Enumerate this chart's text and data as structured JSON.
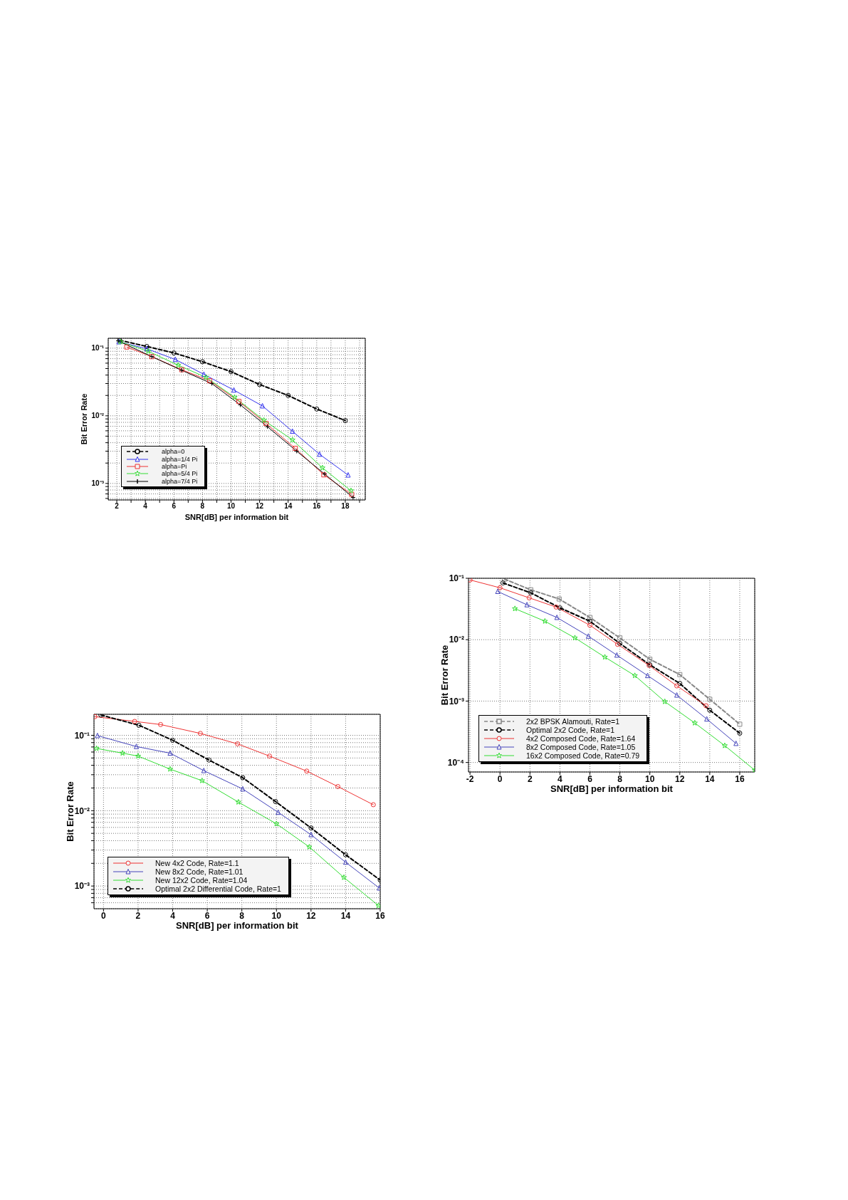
{
  "chart_data": [
    {
      "type": "line",
      "xlabel": "SNR[dB] per information bit",
      "ylabel": "Bit Error Rate",
      "log": "y",
      "grid": true,
      "legend": "bottom left",
      "xlim": [
        1.4,
        19.4
      ],
      "xticks": [
        2,
        {
          "value": 3,
          "label": null
        },
        4,
        {
          "value": 5,
          "label": null
        },
        6,
        {
          "value": 7,
          "label": null
        },
        8,
        {
          "value": 9,
          "label": null
        },
        10,
        {
          "value": 11,
          "label": null
        },
        12,
        {
          "value": 13,
          "label": null
        },
        14,
        {
          "value": 15,
          "label": null
        },
        16,
        {
          "value": 17,
          "label": null
        },
        18,
        {
          "value": 19,
          "label": null
        }
      ],
      "ylim": [
        0.00057,
        0.14
      ],
      "yticks": [
        {
          "value": 0.0006,
          "label": null
        },
        {
          "value": 0.0007,
          "label": null
        },
        {
          "value": 0.0008,
          "label": null
        },
        {
          "value": 0.0009,
          "label": null
        },
        {
          "value": 0.001,
          "label": "10⁻³"
        },
        {
          "value": 0.002,
          "label": null
        },
        {
          "value": 0.003,
          "label": null
        },
        {
          "value": 0.004,
          "label": null
        },
        {
          "value": 0.005,
          "label": null
        },
        {
          "value": 0.006,
          "label": null
        },
        {
          "value": 0.007,
          "label": null
        },
        {
          "value": 0.008,
          "label": null
        },
        {
          "value": 0.009,
          "label": null
        },
        {
          "value": 0.01,
          "label": "10⁻²"
        },
        {
          "value": 0.02,
          "label": null
        },
        {
          "value": 0.03,
          "label": null
        },
        {
          "value": 0.04,
          "label": null
        },
        {
          "value": 0.05,
          "label": null
        },
        {
          "value": 0.06,
          "label": null
        },
        {
          "value": 0.07,
          "label": null
        },
        {
          "value": 0.08,
          "label": null
        },
        {
          "value": 0.09,
          "label": null
        },
        {
          "value": 0.1,
          "label": "10⁻¹"
        }
      ],
      "series": [
        {
          "name": "alpha=0",
          "color": "#000000",
          "line_style": "dashed",
          "marker": "circle",
          "x": [
            2.2,
            4.1,
            6,
            8,
            10,
            12,
            14,
            16,
            18
          ],
          "values": [
            0.131,
            0.106,
            0.085,
            0.063,
            0.045,
            0.029,
            0.02,
            0.0126,
            0.0085
          ]
        },
        {
          "name": "alpha=1/4 Pi",
          "color": "#3333ee",
          "line_style": "solid",
          "marker": "triangle",
          "x": [
            2.15,
            4.1,
            6.1,
            8.1,
            10.2,
            12.2,
            14.3,
            16.2,
            18.2
          ],
          "values": [
            0.124,
            0.098,
            0.068,
            0.041,
            0.024,
            0.014,
            0.0059,
            0.0027,
            0.00133
          ]
        },
        {
          "name": "alpha=Pi",
          "color": "#ee3333",
          "line_style": "solid",
          "marker": "square",
          "x": [
            2.7,
            4.45,
            6.55,
            8.5,
            10.55,
            12.45,
            14.5,
            16.5,
            18.45
          ],
          "values": [
            0.104,
            0.075,
            0.048,
            0.033,
            0.0163,
            0.0077,
            0.0033,
            0.00134,
            0.00069
          ]
        },
        {
          "name": "alpha=5/4 Pi",
          "color": "#33dd33",
          "line_style": "solid",
          "marker": "star",
          "x": [
            2.25,
            4.2,
            6.3,
            8.25,
            10.25,
            12.3,
            14.3,
            16.4,
            18.4
          ],
          "values": [
            0.124,
            0.09,
            0.056,
            0.037,
            0.0188,
            0.0086,
            0.0044,
            0.0017,
            0.00078
          ]
        },
        {
          "name": "alpha=7/4 Pi",
          "color": "#000000",
          "line_style": "solid",
          "marker": "cross",
          "x": [
            2.1,
            4.45,
            6.55,
            8.65,
            10.65,
            12.55,
            14.6,
            16.55,
            18.55
          ],
          "values": [
            0.128,
            0.075,
            0.047,
            0.03,
            0.0145,
            0.0069,
            0.003,
            0.00138,
            0.00062
          ]
        }
      ]
    },
    {
      "type": "line",
      "xlabel": "SNR[dB] per information bit",
      "ylabel": "Bit Error Rate",
      "log": "y",
      "grid": true,
      "legend": "bottom left",
      "xlim": [
        -2.1,
        17
      ],
      "xticks": [
        -2,
        0,
        2,
        4,
        6,
        8,
        10,
        12,
        14,
        16
      ],
      "ylim": [
        7e-05,
        0.1
      ],
      "yticks": [
        {
          "value": 0.0001,
          "label": "10⁻⁴"
        },
        {
          "value": 0.001,
          "label": "10⁻³"
        },
        {
          "value": 0.01,
          "label": "10⁻²"
        },
        {
          "value": 0.1,
          "label": "10⁻¹"
        }
      ],
      "series": [
        {
          "name": "2x2 BPSK Alamouti, Rate=1",
          "color": "#888888",
          "line_style": "dashed",
          "marker": "square",
          "x": [
            0.3,
            2.05,
            3.95,
            6,
            8,
            10,
            12,
            14,
            16
          ],
          "values": [
            0.097,
            0.065,
            0.046,
            0.023,
            0.0107,
            0.0048,
            0.0027,
            0.00107,
            0.00042
          ]
        },
        {
          "name": "Optimal 2x2 Code, Rate=1",
          "color": "#000000",
          "line_style": "dashed",
          "marker": "circle",
          "x": [
            0.2,
            2.05,
            4,
            6,
            8,
            10,
            12,
            14,
            16
          ],
          "values": [
            0.084,
            0.058,
            0.033,
            0.02,
            0.0087,
            0.0039,
            0.00194,
            0.00071,
            0.0003
          ]
        },
        {
          "name": "4x2 Composed Code, Rate=1.64",
          "color": "#ee3333",
          "line_style": "solid",
          "marker": "circle",
          "x": [
            -2,
            0,
            1.95,
            3.75,
            6,
            7.85,
            9.95,
            11.8,
            13.75
          ],
          "values": [
            0.094,
            0.07,
            0.048,
            0.034,
            0.0172,
            0.0084,
            0.0038,
            0.00177,
            0.00084
          ]
        },
        {
          "name": "8x2 Composed Code, Rate=1.05",
          "color": "#4444bb",
          "line_style": "solid",
          "marker": "triangle",
          "x": [
            -0.15,
            1.8,
            3.8,
            5.9,
            7.8,
            9.85,
            11.8,
            13.8,
            15.75
          ],
          "values": [
            0.061,
            0.037,
            0.023,
            0.0114,
            0.0056,
            0.0026,
            0.00125,
            0.00051,
            0.000204
          ]
        },
        {
          "name": "16x2 Composed Code, Rate=0.79",
          "color": "#33dd33",
          "line_style": "solid",
          "marker": "star",
          "x": [
            1,
            3,
            5,
            7,
            9,
            11,
            13,
            15,
            17
          ],
          "values": [
            0.032,
            0.02,
            0.0107,
            0.0052,
            0.0026,
            0.00098,
            0.00044,
            0.000188,
            7.5e-05
          ]
        }
      ]
    },
    {
      "type": "line",
      "xlabel": "SNR[dB] per information bit",
      "ylabel": "Bit Error Rate",
      "log": "y",
      "grid": true,
      "legend": "bottom left",
      "xlim": [
        -0.55,
        16
      ],
      "xticks": [
        0,
        2,
        4,
        6,
        8,
        10,
        12,
        14,
        16
      ],
      "ylim": [
        0.0005,
        0.19
      ],
      "yticks": [
        {
          "value": 0.0006,
          "label": null
        },
        {
          "value": 0.0007,
          "label": null
        },
        {
          "value": 0.0008,
          "label": null
        },
        {
          "value": 0.0009,
          "label": null
        },
        {
          "value": 0.001,
          "label": "10⁻³"
        },
        {
          "value": 0.002,
          "label": null
        },
        {
          "value": 0.003,
          "label": null
        },
        {
          "value": 0.004,
          "label": null
        },
        {
          "value": 0.005,
          "label": null
        },
        {
          "value": 0.006,
          "label": null
        },
        {
          "value": 0.007,
          "label": null
        },
        {
          "value": 0.008,
          "label": null
        },
        {
          "value": 0.009,
          "label": null
        },
        {
          "value": 0.01,
          "label": "10⁻²"
        },
        {
          "value": 0.02,
          "label": null
        },
        {
          "value": 0.03,
          "label": null
        },
        {
          "value": 0.04,
          "label": null
        },
        {
          "value": 0.05,
          "label": null
        },
        {
          "value": 0.06,
          "label": null
        },
        {
          "value": 0.07,
          "label": null
        },
        {
          "value": 0.08,
          "label": null
        },
        {
          "value": 0.09,
          "label": null
        },
        {
          "value": 0.1,
          "label": "10⁻¹"
        }
      ],
      "series": [
        {
          "name": "New 4x2 Code, Rate=1.1",
          "color": "#ee3333",
          "line_style": "solid",
          "marker": "circle",
          "x": [
            -0.5,
            1.8,
            3.3,
            5.6,
            7.75,
            9.6,
            11.75,
            13.55,
            15.6
          ],
          "values": [
            0.177,
            0.153,
            0.139,
            0.106,
            0.077,
            0.053,
            0.0335,
            0.0209,
            0.012
          ]
        },
        {
          "name": "New 8x2 Code, Rate=1.01",
          "color": "#4444bb",
          "line_style": "solid",
          "marker": "triangle",
          "x": [
            -0.35,
            1.9,
            3.85,
            5.8,
            8.05,
            10.1,
            12,
            14,
            15.95
          ],
          "values": [
            0.099,
            0.071,
            0.058,
            0.034,
            0.0194,
            0.0095,
            0.0048,
            0.00207,
            0.00094
          ]
        },
        {
          "name": "New 12x2 Code, Rate=1.04",
          "color": "#33dd33",
          "line_style": "solid",
          "marker": "star",
          "x": [
            -0.4,
            1.1,
            2,
            3.85,
            5.7,
            7.8,
            10,
            11.9,
            13.9,
            15.9
          ],
          "values": [
            0.067,
            0.058,
            0.053,
            0.0356,
            0.025,
            0.013,
            0.0067,
            0.0033,
            0.0013,
            0.00055
          ]
        },
        {
          "name": "Optimal 2x2 Differential Code, Rate=1",
          "color": "#000000",
          "line_style": "dashed",
          "marker": "circle",
          "x": [
            -0.15,
            2.05,
            4,
            6.1,
            8.05,
            9.95,
            12,
            14,
            16
          ],
          "values": [
            0.186,
            0.136,
            0.086,
            0.047,
            0.0274,
            0.0132,
            0.0059,
            0.0026,
            0.0012
          ]
        }
      ]
    }
  ]
}
